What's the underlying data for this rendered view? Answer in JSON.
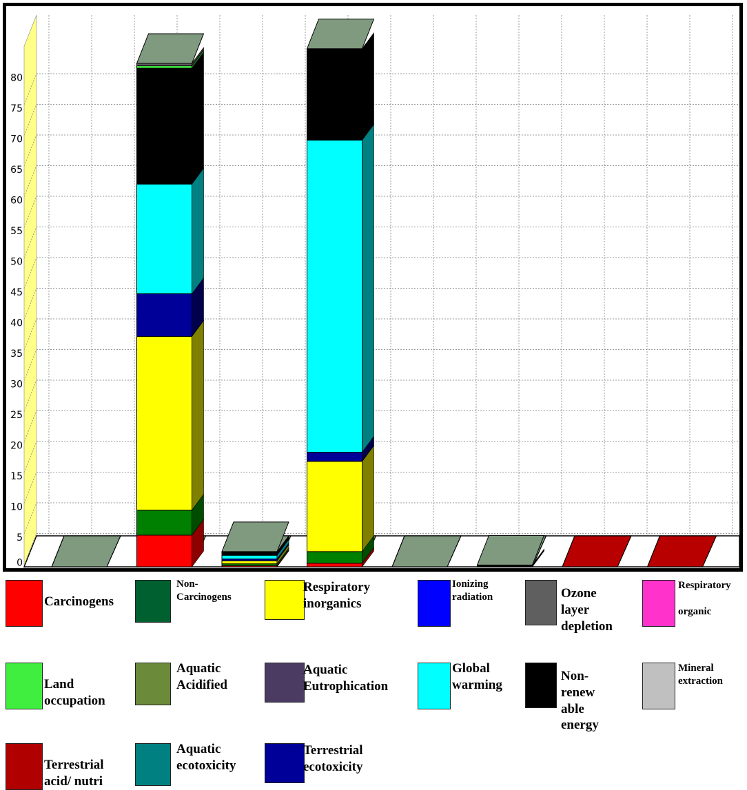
{
  "colors": {
    "floor_top": "#ffffff",
    "floor_front": "#ffffff",
    "grid": "#9a9a9a",
    "axis_wall": "#ffff88",
    "pad_top": "#7f9a7f"
  },
  "chart_data": {
    "type": "bar",
    "stacked": true,
    "three_d": true,
    "title": "",
    "xlabel": "",
    "ylabel": "",
    "ylim": [
      0,
      85
    ],
    "yticks": [
      0,
      5,
      10,
      15,
      20,
      25,
      30,
      35,
      40,
      45,
      50,
      55,
      60,
      65,
      70,
      75,
      80
    ],
    "grid": true,
    "legend_position": "bottom",
    "bars": [
      {
        "total": 0,
        "segments": []
      },
      {
        "total": 82.6,
        "segments": [
          {
            "series": "Carcinogens",
            "value": 5.2
          },
          {
            "series": "Non-Carcinogens",
            "value": 4.1
          },
          {
            "series": "Respiratory inorganics",
            "value": 28.5
          },
          {
            "series": "Terrestrial ecotoxicity",
            "value": 7.0
          },
          {
            "series": "Global warming",
            "value": 18.0
          },
          {
            "series": "Non-renewable energy",
            "value": 19.0
          },
          {
            "series": "Land occupation",
            "value": 0.4
          },
          {
            "series": "Ozone layer depletion",
            "value": 0.4
          }
        ]
      },
      {
        "total": 2.5,
        "segments": [
          {
            "series": "Carcinogens",
            "value": 0.2
          },
          {
            "series": "Non-Carcinogens",
            "value": 0.3
          },
          {
            "series": "Respiratory inorganics",
            "value": 0.5
          },
          {
            "series": "Terrestrial ecotoxicity",
            "value": 0.3
          },
          {
            "series": "Global warming",
            "value": 0.6
          },
          {
            "series": "Non-renewable energy",
            "value": 0.6
          }
        ]
      },
      {
        "total": 85,
        "segments": [
          {
            "series": "Carcinogens",
            "value": 0.6
          },
          {
            "series": "Non-Carcinogens",
            "value": 1.9
          },
          {
            "series": "Respiratory inorganics",
            "value": 14.8
          },
          {
            "series": "Terrestrial ecotoxicity",
            "value": 1.5
          },
          {
            "series": "Global warming",
            "value": 51.2
          },
          {
            "series": "Non-renewable energy",
            "value": 15.0
          }
        ]
      },
      {
        "total": 0,
        "segments": []
      },
      {
        "total": 0.3,
        "segments": [
          {
            "series": "Non-renewable energy",
            "value": 0.3
          }
        ]
      },
      {
        "total": 0,
        "segments": [],
        "pad_color": "#b80000"
      },
      {
        "total": 0,
        "segments": [],
        "pad_color": "#b80000"
      }
    ],
    "series": [
      {
        "name": "Carcinogens",
        "color": "#ff0000",
        "side": "#8e0000"
      },
      {
        "name": "Non-Carcinogens",
        "color": "#008000",
        "side": "#004d00"
      },
      {
        "name": "Respiratory inorganics",
        "color": "#ffff00",
        "side": "#808000"
      },
      {
        "name": "Ionizing radiation",
        "color": "#0000ff",
        "side": "#00007f"
      },
      {
        "name": "Ozone layer depletion",
        "color": "#5f5f5f",
        "side": "#333333"
      },
      {
        "name": "Respiratory organic",
        "color": "#ff33cc",
        "side": "#801a66"
      },
      {
        "name": "Land occupation",
        "color": "#40ee40",
        "side": "#207720"
      },
      {
        "name": "Aquatic Acidified",
        "color": "#6b8a3a",
        "side": "#36451d"
      },
      {
        "name": "Aquatic Eutrophication",
        "color": "#4b3b62",
        "side": "#261e31"
      },
      {
        "name": "Global warming",
        "color": "#00ffff",
        "side": "#008080"
      },
      {
        "name": "Non-renewable energy",
        "color": "#000000",
        "side": "#000000"
      },
      {
        "name": "Mineral extraction",
        "color": "#c0c0c0",
        "side": "#606060"
      },
      {
        "name": "Terrestrial acid/ nutri",
        "color": "#b00000",
        "side": "#580000"
      },
      {
        "name": "Aquatic ecotoxicity",
        "color": "#008080",
        "side": "#004040"
      },
      {
        "name": "Terrestrial ecotoxicity",
        "color": "#000099",
        "side": "#00004d"
      }
    ]
  },
  "legend": [
    {
      "name": "carcinogens",
      "label": "Carcinogens",
      "color": "#ff0000",
      "size": 19
    },
    {
      "name": "non-carcinogens",
      "label": "Non-Carcinogens",
      "color": "#006030",
      "size": 15
    },
    {
      "name": "respiratory-inorganics",
      "label": "Respiratory\ninorganics",
      "color": "#ffff00",
      "size": 19
    },
    {
      "name": "ionizing-radiation",
      "label": "Ionizing\nradiation",
      "color": "#0000ff",
      "size": 15
    },
    {
      "name": "ozone-layer-depletion",
      "label": "Ozone\nlayer\ndepletion",
      "color": "#5f5f5f",
      "size": 19
    },
    {
      "name": "respiratory-organic",
      "label": "Respiratory\n\norganic",
      "color": "#ff33cc",
      "size": 15
    },
    {
      "name": "land-occupation",
      "label": "Land\noccupation",
      "color": "#40ee40",
      "size": 19
    },
    {
      "name": "aquatic-acidified",
      "label": "Aquatic\n Acidified",
      "color": "#6b8a3a",
      "size": 19
    },
    {
      "name": "aquatic-eutrophication",
      "label": "Aquatic\n  Eutrophication",
      "color": "#4b3b62",
      "size": 19
    },
    {
      "name": "global-warming",
      "label": "Global\nwarming",
      "color": "#00ffff",
      "size": 19
    },
    {
      "name": "non-renewable-energy",
      "label": "Non-renew\nable\nenergy",
      "color": "#000000",
      "size": 19
    },
    {
      "name": "mineral-extraction",
      "label": "Mineral\n extraction",
      "color": "#c0c0c0",
      "size": 15
    },
    {
      "name": "terrestrial-acid-nutri",
      "label": "Terrestrial\nacid/ nutri",
      "color": "#b00000",
      "size": 19
    },
    {
      "name": "aquatic-ecotoxicity",
      "label": "Aquatic\necotoxicity",
      "color": "#008080",
      "size": 19
    },
    {
      "name": "terrestrial-ecotoxicity",
      "label": "Terrestrial\necotoxicity",
      "color": "#000099",
      "size": 19
    }
  ]
}
